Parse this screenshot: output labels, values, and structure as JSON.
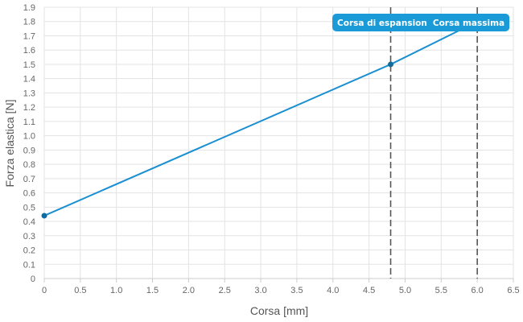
{
  "chart_data": {
    "type": "line",
    "title": "",
    "xlabel": "Corsa [mm]",
    "ylabel": "Forza elastica [N]",
    "xlim": [
      0,
      6.5
    ],
    "ylim": [
      0,
      1.9
    ],
    "x_ticks": [
      "0",
      "0.5",
      "1.0",
      "1.5",
      "2.0",
      "2.5",
      "3.0",
      "3.5",
      "4.0",
      "4.5",
      "5.0",
      "5.5",
      "6.0",
      "6.5"
    ],
    "y_ticks": [
      "0",
      "0.1",
      "0.2",
      "0.3",
      "0.4",
      "0.5",
      "0.6",
      "0.7",
      "0.8",
      "0.9",
      "1.0",
      "1.1",
      "1.2",
      "1.3",
      "1.4",
      "1.5",
      "1.6",
      "1.7",
      "1.8",
      "1.9"
    ],
    "grid": true,
    "series": [
      {
        "x": [
          0,
          4.8,
          6.0
        ],
        "y": [
          0.44,
          1.5,
          1.8
        ],
        "marker_x": [
          0,
          4.8
        ],
        "marker_y": [
          0.44,
          1.5
        ],
        "color": "#1a8fd1"
      }
    ],
    "reference_lines": [
      {
        "x": 4.8,
        "label": "Corsa di espansion"
      },
      {
        "x": 6.0,
        "label": "Corsa massima"
      }
    ],
    "colors": {
      "line": "#1a8fd1",
      "marker": "#106c9e",
      "annotation": "#1a9ad6",
      "reference": "#555555",
      "grid": "#e3e3e3"
    }
  }
}
